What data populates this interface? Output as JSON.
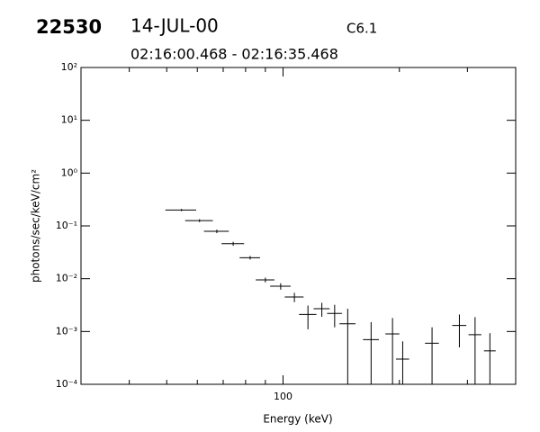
{
  "chart_data": {
    "type": "errorbar",
    "id": "22530",
    "date": "14-JUL-00",
    "class": "C6.1",
    "subtitle": "02:16:00.468 - 02:16:35.468",
    "x_label": "Energy (keV)",
    "y_label": "photons/sec/keV/cm²",
    "x_log": true,
    "y_log": true,
    "xlim": [
      30,
      400
    ],
    "ylim": [
      0.0001,
      100
    ],
    "xticks": [
      100
    ],
    "xminor": [
      30,
      40,
      50,
      60,
      70,
      80,
      90,
      200,
      300,
      400
    ],
    "yticks": [
      {
        "value": 0.0001,
        "label": "10⁻⁴"
      },
      {
        "value": 0.001,
        "label": "10⁻³"
      },
      {
        "value": 0.01,
        "label": "10⁻²"
      },
      {
        "value": 0.1,
        "label": "10⁻¹"
      },
      {
        "value": 1,
        "label": "10⁰"
      },
      {
        "value": 10,
        "label": "10¹"
      },
      {
        "value": 100,
        "label": "10²"
      }
    ],
    "color": "#000000",
    "x": [
      54.6,
      60.8,
      67.4,
      74.3,
      82.2,
      90,
      98.6,
      107,
      116,
      126,
      136,
      147,
      169,
      192,
      204,
      243,
      286,
      314,
      343
    ],
    "x_err": [
      5,
      5,
      5,
      5,
      5,
      5,
      6,
      6,
      6,
      6,
      6,
      7,
      8,
      8,
      8,
      10,
      12,
      12,
      12
    ],
    "values": [
      0.2,
      0.126,
      0.079,
      0.046,
      0.025,
      0.0095,
      0.0072,
      0.0045,
      0.0021,
      0.0027,
      0.0022,
      0.0014,
      0.0007,
      0.0009,
      0.0003,
      0.0006,
      0.0013,
      0.00087,
      0.00043
    ],
    "errors": [
      0.01,
      0.008,
      0.006,
      0.004,
      0.002,
      0.001,
      0.001,
      0.0009,
      0.001,
      0.0008,
      0.001,
      0.0013,
      0.0008,
      0.0009,
      0.00035,
      0.0006,
      0.0008,
      0.001,
      0.0005
    ]
  }
}
